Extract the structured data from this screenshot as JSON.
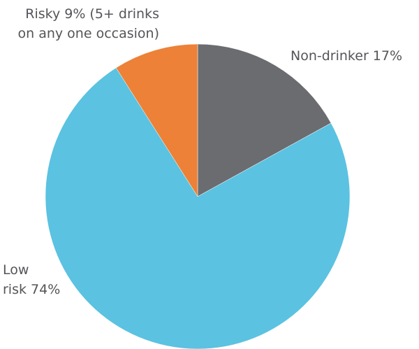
{
  "chart_data": {
    "type": "pie",
    "title": "",
    "slices": [
      {
        "name": "Non-drinker",
        "value": 17,
        "color": "#6b6c70",
        "label_lines": [
          "Non-drinker 17%"
        ]
      },
      {
        "name": "Low risk",
        "value": 74,
        "color": "#5bc2e1",
        "label_lines": [
          "Low",
          "risk 74%"
        ]
      },
      {
        "name": "Risky",
        "value": 9,
        "color": "#ec8137",
        "label_lines": [
          "Risky 9% (5+ drinks",
          "on any one occasion)"
        ]
      }
    ],
    "start_angle_deg": 0,
    "direction": "clockwise",
    "legend": "none"
  }
}
